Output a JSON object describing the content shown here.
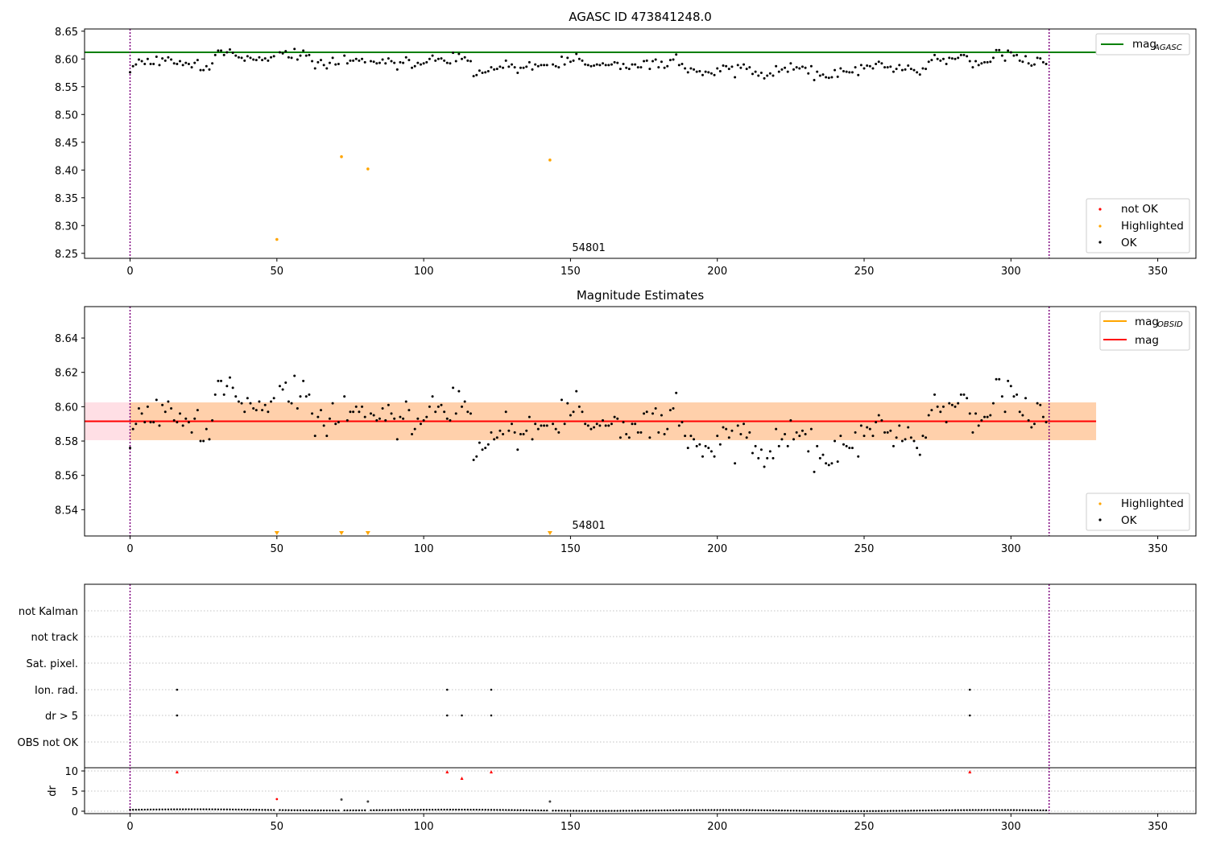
{
  "chart_data": [
    {
      "type": "scatter",
      "title": "AGASC ID 473841248.0",
      "xlim": [
        -15.5,
        363
      ],
      "ylim": [
        8.241,
        8.654
      ],
      "xticks": [
        0,
        50,
        100,
        150,
        200,
        250,
        300,
        350
      ],
      "yticks": [
        8.25,
        8.3,
        8.35,
        8.4,
        8.45,
        8.5,
        8.55,
        8.6,
        8.65
      ],
      "ytick_labels": [
        "8.25",
        "8.30",
        "8.35",
        "8.40",
        "8.45",
        "8.50",
        "8.55",
        "8.60",
        "8.65"
      ],
      "obsid_annotation": {
        "x": 150,
        "text": "54801"
      },
      "obsid_boundaries": [
        0,
        313
      ],
      "mag_agasc": 8.612,
      "ok_series": "mag_ok",
      "highlighted": {
        "x": [
          50,
          72,
          81,
          143
        ],
        "y": [
          8.275,
          8.424,
          8.402,
          8.418
        ]
      },
      "legend_top": {
        "position": "upper right",
        "entries": [
          {
            "label": "mag",
            "sub": "AGASC",
            "color": "#008000",
            "kind": "line"
          }
        ]
      },
      "legend_bottom": {
        "position": "lower right",
        "entries": [
          {
            "label": "not OK",
            "color": "#ff0000",
            "kind": "dot"
          },
          {
            "label": "Highlighted",
            "color": "#ffa500",
            "kind": "dot"
          },
          {
            "label": "OK",
            "color": "#000000",
            "kind": "dot"
          }
        ]
      }
    },
    {
      "type": "scatter",
      "title": "Magnitude Estimates",
      "xlim": [
        -15.5,
        363
      ],
      "ylim": [
        8.5247,
        8.6583
      ],
      "xticks": [
        0,
        50,
        100,
        150,
        200,
        250,
        300,
        350
      ],
      "yticks": [
        8.54,
        8.56,
        8.58,
        8.6,
        8.62,
        8.64
      ],
      "ytick_labels": [
        "8.54",
        "8.56",
        "8.58",
        "8.60",
        "8.62",
        "8.64"
      ],
      "obsid_annotation": {
        "x": 150,
        "text": "54801"
      },
      "obsid_boundaries": [
        0,
        313
      ],
      "mag": 8.5915,
      "mag_band": [
        8.5805,
        8.6025
      ],
      "mag_band_xrange": [
        -15.5,
        329
      ],
      "mag_obsid": 8.5915,
      "mag_obsid_band": [
        8.5805,
        8.6025
      ],
      "mag_obsid_band_xrange": [
        0,
        329
      ],
      "ok_series": "mag_ok",
      "highlighted_markers": {
        "x": [
          50,
          72,
          81,
          143
        ],
        "note": "below axis"
      },
      "legend_top": {
        "position": "upper right",
        "entries": [
          {
            "label": "mag",
            "sub": "OBSID",
            "color": "#ffa500",
            "kind": "line"
          },
          {
            "label": "mag",
            "sub": "",
            "color": "#ff0000",
            "kind": "line"
          }
        ]
      },
      "legend_bottom": {
        "position": "lower right",
        "entries": [
          {
            "label": "Highlighted",
            "color": "#ffa500",
            "kind": "dot"
          },
          {
            "label": "OK",
            "color": "#000000",
            "kind": "dot"
          }
        ]
      }
    },
    {
      "type": "scatter",
      "title": "",
      "xlim": [
        -15.5,
        363
      ],
      "xticks": [
        0,
        50,
        100,
        150,
        200,
        250,
        300,
        350
      ],
      "flag_rows": [
        "not Kalman",
        "not track",
        "Sat. pixel.",
        "Ion. rad.",
        "dr > 5",
        "OBS not OK"
      ],
      "flags": {
        "Ion. rad.": [
          16,
          108,
          123,
          286
        ],
        "dr > 5": [
          16,
          108,
          113,
          123,
          286
        ]
      },
      "dr": {
        "ylabel": "dr",
        "ylim": [
          -0.6,
          10.8
        ],
        "yticks": [
          0,
          5,
          10
        ],
        "ytick_labels": [
          "0",
          "5",
          "10"
        ],
        "baseline_points_x_range": [
          0,
          313
        ],
        "not_ok": {
          "x": [
            16,
            50,
            108,
            113,
            123,
            286
          ],
          "y": [
            9.8,
            3.0,
            9.8,
            8.2,
            9.8,
            9.8
          ]
        },
        "highlighted": {
          "x": [
            72,
            81,
            143
          ],
          "y": [
            2.9,
            2.4,
            2.4
          ]
        }
      },
      "obsid_boundaries": [
        0,
        313
      ]
    }
  ],
  "mag_ok": [
    [
      0,
      8.576
    ],
    [
      1,
      8.587
    ],
    [
      2,
      8.59
    ],
    [
      3,
      8.599
    ],
    [
      4,
      8.596
    ],
    [
      5,
      8.591
    ],
    [
      6,
      8.6
    ],
    [
      7,
      8.591
    ],
    [
      8,
      8.591
    ],
    [
      9,
      8.604
    ],
    [
      10,
      8.589
    ],
    [
      11,
      8.601
    ],
    [
      12,
      8.597
    ],
    [
      13,
      8.603
    ],
    [
      14,
      8.599
    ],
    [
      15,
      8.592
    ],
    [
      16,
      8.591
    ],
    [
      17,
      8.596
    ],
    [
      18,
      8.589
    ],
    [
      19,
      8.593
    ],
    [
      20,
      8.591
    ],
    [
      21,
      8.585
    ],
    [
      22,
      8.593
    ],
    [
      23,
      8.598
    ],
    [
      24,
      8.58
    ],
    [
      25,
      8.58
    ],
    [
      26,
      8.587
    ],
    [
      27,
      8.581
    ],
    [
      28,
      8.592
    ],
    [
      29,
      8.607
    ],
    [
      30,
      8.615
    ],
    [
      31,
      8.615
    ],
    [
      32,
      8.607
    ],
    [
      33,
      8.612
    ],
    [
      34,
      8.617
    ],
    [
      35,
      8.611
    ],
    [
      36,
      8.606
    ],
    [
      37,
      8.603
    ],
    [
      38,
      8.602
    ],
    [
      39,
      8.597
    ],
    [
      40,
      8.605
    ],
    [
      41,
      8.602
    ],
    [
      42,
      8.599
    ],
    [
      43,
      8.598
    ],
    [
      44,
      8.603
    ],
    [
      45,
      8.598
    ],
    [
      46,
      8.601
    ],
    [
      47,
      8.597
    ],
    [
      48,
      8.603
    ],
    [
      49,
      8.605
    ],
    [
      51,
      8.612
    ],
    [
      52,
      8.61
    ],
    [
      53,
      8.614
    ],
    [
      54,
      8.603
    ],
    [
      55,
      8.602
    ],
    [
      56,
      8.618
    ],
    [
      57,
      8.599
    ],
    [
      58,
      8.606
    ],
    [
      59,
      8.615
    ],
    [
      60,
      8.606
    ],
    [
      61,
      8.607
    ],
    [
      62,
      8.596
    ],
    [
      63,
      8.583
    ],
    [
      64,
      8.594
    ],
    [
      65,
      8.598
    ],
    [
      66,
      8.589
    ],
    [
      67,
      8.583
    ],
    [
      68,
      8.593
    ],
    [
      69,
      8.602
    ],
    [
      70,
      8.59
    ],
    [
      71,
      8.591
    ],
    [
      73,
      8.606
    ],
    [
      74,
      8.592
    ],
    [
      75,
      8.597
    ],
    [
      76,
      8.597
    ],
    [
      77,
      8.6
    ],
    [
      78,
      8.597
    ],
    [
      79,
      8.6
    ],
    [
      80,
      8.594
    ],
    [
      82,
      8.596
    ],
    [
      83,
      8.595
    ],
    [
      84,
      8.592
    ],
    [
      85,
      8.593
    ],
    [
      86,
      8.599
    ],
    [
      87,
      8.592
    ],
    [
      88,
      8.601
    ],
    [
      89,
      8.596
    ],
    [
      90,
      8.593
    ],
    [
      91,
      8.581
    ],
    [
      92,
      8.594
    ],
    [
      93,
      8.593
    ],
    [
      94,
      8.603
    ],
    [
      95,
      8.598
    ],
    [
      96,
      8.584
    ],
    [
      97,
      8.587
    ],
    [
      98,
      8.593
    ],
    [
      99,
      8.59
    ],
    [
      100,
      8.592
    ],
    [
      101,
      8.594
    ],
    [
      102,
      8.6
    ],
    [
      103,
      8.606
    ],
    [
      104,
      8.597
    ],
    [
      105,
      8.6
    ],
    [
      106,
      8.601
    ],
    [
      107,
      8.597
    ],
    [
      108,
      8.593
    ],
    [
      109,
      8.592
    ],
    [
      110,
      8.611
    ],
    [
      111,
      8.596
    ],
    [
      112,
      8.609
    ],
    [
      113,
      8.6
    ],
    [
      114,
      8.603
    ],
    [
      115,
      8.597
    ],
    [
      116,
      8.596
    ],
    [
      117,
      8.569
    ],
    [
      118,
      8.571
    ],
    [
      119,
      8.579
    ],
    [
      120,
      8.575
    ],
    [
      121,
      8.576
    ],
    [
      122,
      8.578
    ],
    [
      123,
      8.585
    ],
    [
      124,
      8.581
    ],
    [
      125,
      8.582
    ],
    [
      126,
      8.586
    ],
    [
      127,
      8.584
    ],
    [
      128,
      8.597
    ],
    [
      129,
      8.586
    ],
    [
      130,
      8.59
    ],
    [
      131,
      8.585
    ],
    [
      132,
      8.575
    ],
    [
      133,
      8.584
    ],
    [
      134,
      8.584
    ],
    [
      135,
      8.586
    ],
    [
      136,
      8.594
    ],
    [
      137,
      8.581
    ],
    [
      138,
      8.59
    ],
    [
      139,
      8.587
    ],
    [
      140,
      8.589
    ],
    [
      141,
      8.589
    ],
    [
      142,
      8.589
    ],
    [
      144,
      8.59
    ],
    [
      145,
      8.587
    ],
    [
      146,
      8.585
    ],
    [
      147,
      8.604
    ],
    [
      148,
      8.59
    ],
    [
      149,
      8.602
    ],
    [
      150,
      8.595
    ],
    [
      151,
      8.597
    ],
    [
      152,
      8.609
    ],
    [
      153,
      8.6
    ],
    [
      154,
      8.597
    ],
    [
      155,
      8.59
    ],
    [
      156,
      8.589
    ],
    [
      157,
      8.587
    ],
    [
      158,
      8.588
    ],
    [
      159,
      8.59
    ],
    [
      160,
      8.589
    ],
    [
      161,
      8.592
    ],
    [
      162,
      8.589
    ],
    [
      163,
      8.589
    ],
    [
      164,
      8.59
    ],
    [
      165,
      8.594
    ],
    [
      166,
      8.593
    ],
    [
      167,
      8.582
    ],
    [
      168,
      8.591
    ],
    [
      169,
      8.584
    ],
    [
      170,
      8.582
    ],
    [
      171,
      8.59
    ],
    [
      172,
      8.59
    ],
    [
      173,
      8.585
    ],
    [
      174,
      8.585
    ],
    [
      175,
      8.596
    ],
    [
      176,
      8.597
    ],
    [
      177,
      8.582
    ],
    [
      178,
      8.596
    ],
    [
      179,
      8.599
    ],
    [
      180,
      8.585
    ],
    [
      181,
      8.595
    ],
    [
      182,
      8.584
    ],
    [
      183,
      8.587
    ],
    [
      184,
      8.598
    ],
    [
      185,
      8.599
    ],
    [
      186,
      8.608
    ],
    [
      187,
      8.589
    ],
    [
      188,
      8.591
    ],
    [
      189,
      8.583
    ],
    [
      190,
      8.576
    ],
    [
      191,
      8.583
    ],
    [
      192,
      8.581
    ],
    [
      193,
      8.577
    ],
    [
      194,
      8.578
    ],
    [
      195,
      8.571
    ],
    [
      196,
      8.577
    ],
    [
      197,
      8.576
    ],
    [
      198,
      8.574
    ],
    [
      199,
      8.571
    ],
    [
      200,
      8.583
    ],
    [
      201,
      8.578
    ],
    [
      202,
      8.588
    ],
    [
      203,
      8.587
    ],
    [
      204,
      8.582
    ],
    [
      205,
      8.586
    ],
    [
      206,
      8.567
    ],
    [
      207,
      8.589
    ],
    [
      208,
      8.584
    ],
    [
      209,
      8.59
    ],
    [
      210,
      8.582
    ],
    [
      211,
      8.585
    ],
    [
      212,
      8.573
    ],
    [
      213,
      8.577
    ],
    [
      214,
      8.57
    ],
    [
      215,
      8.575
    ],
    [
      216,
      8.565
    ],
    [
      217,
      8.57
    ],
    [
      218,
      8.574
    ],
    [
      219,
      8.57
    ],
    [
      220,
      8.587
    ],
    [
      221,
      8.577
    ],
    [
      222,
      8.581
    ],
    [
      223,
      8.584
    ],
    [
      224,
      8.577
    ],
    [
      225,
      8.592
    ],
    [
      226,
      8.581
    ],
    [
      227,
      8.585
    ],
    [
      228,
      8.583
    ],
    [
      229,
      8.586
    ],
    [
      230,
      8.584
    ],
    [
      231,
      8.574
    ],
    [
      232,
      8.587
    ],
    [
      233,
      8.562
    ],
    [
      234,
      8.577
    ],
    [
      235,
      8.57
    ],
    [
      236,
      8.572
    ],
    [
      237,
      8.567
    ],
    [
      238,
      8.566
    ],
    [
      239,
      8.567
    ],
    [
      240,
      8.58
    ],
    [
      241,
      8.568
    ],
    [
      242,
      8.583
    ],
    [
      243,
      8.578
    ],
    [
      244,
      8.577
    ],
    [
      245,
      8.576
    ],
    [
      246,
      8.576
    ],
    [
      247,
      8.585
    ],
    [
      248,
      8.571
    ],
    [
      249,
      8.589
    ],
    [
      250,
      8.583
    ],
    [
      251,
      8.588
    ],
    [
      252,
      8.587
    ],
    [
      253,
      8.583
    ],
    [
      254,
      8.591
    ],
    [
      255,
      8.595
    ],
    [
      256,
      8.592
    ],
    [
      257,
      8.585
    ],
    [
      258,
      8.585
    ],
    [
      259,
      8.586
    ],
    [
      260,
      8.577
    ],
    [
      261,
      8.582
    ],
    [
      262,
      8.589
    ],
    [
      263,
      8.58
    ],
    [
      264,
      8.581
    ],
    [
      265,
      8.588
    ],
    [
      266,
      8.582
    ],
    [
      267,
      8.58
    ],
    [
      268,
      8.576
    ],
    [
      269,
      8.572
    ],
    [
      270,
      8.583
    ],
    [
      271,
      8.582
    ],
    [
      272,
      8.595
    ],
    [
      273,
      8.598
    ],
    [
      274,
      8.607
    ],
    [
      275,
      8.6
    ],
    [
      276,
      8.597
    ],
    [
      277,
      8.6
    ],
    [
      278,
      8.591
    ],
    [
      279,
      8.602
    ],
    [
      280,
      8.601
    ],
    [
      281,
      8.6
    ],
    [
      282,
      8.602
    ],
    [
      283,
      8.607
    ],
    [
      284,
      8.607
    ],
    [
      285,
      8.605
    ],
    [
      286,
      8.596
    ],
    [
      287,
      8.585
    ],
    [
      288,
      8.596
    ],
    [
      289,
      8.589
    ],
    [
      290,
      8.592
    ],
    [
      291,
      8.594
    ],
    [
      292,
      8.594
    ],
    [
      293,
      8.595
    ],
    [
      294,
      8.602
    ],
    [
      295,
      8.616
    ],
    [
      296,
      8.616
    ],
    [
      297,
      8.606
    ],
    [
      298,
      8.597
    ],
    [
      299,
      8.615
    ],
    [
      300,
      8.612
    ],
    [
      301,
      8.606
    ],
    [
      302,
      8.607
    ],
    [
      303,
      8.597
    ],
    [
      304,
      8.595
    ],
    [
      305,
      8.605
    ],
    [
      306,
      8.592
    ],
    [
      307,
      8.588
    ],
    [
      308,
      8.59
    ],
    [
      309,
      8.602
    ],
    [
      310,
      8.601
    ],
    [
      311,
      8.594
    ],
    [
      312,
      8.591
    ]
  ]
}
